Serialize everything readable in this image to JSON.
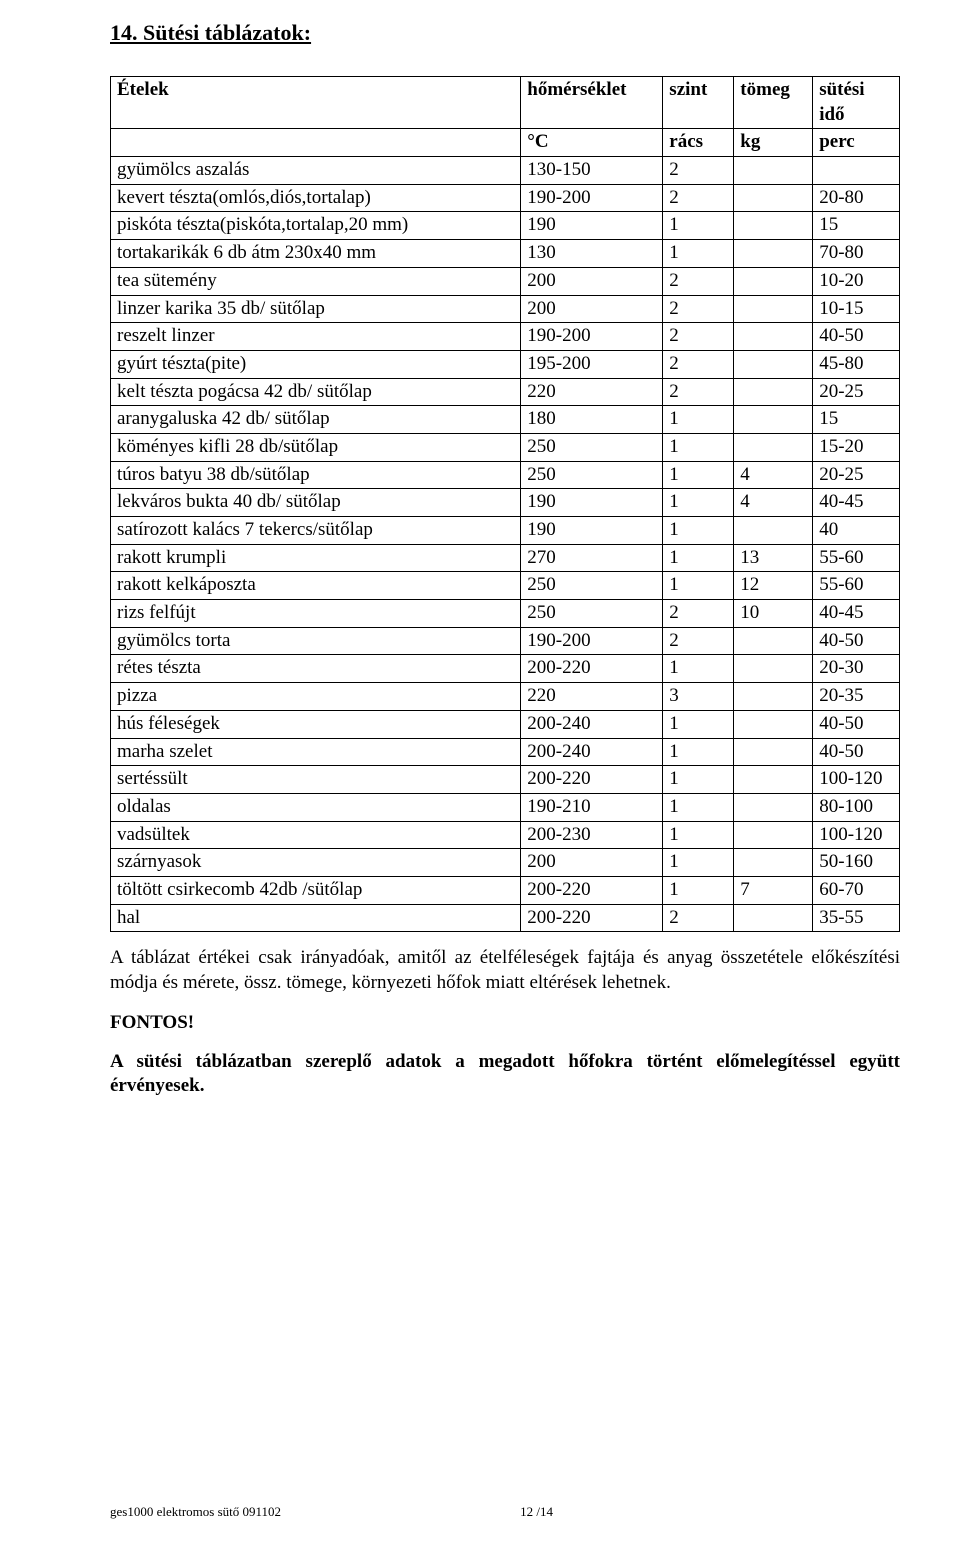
{
  "heading": "14. Sütési táblázatok:",
  "table": {
    "type": "table",
    "header1": [
      "Ételek",
      "hőmérséklet",
      "szint",
      "tömeg",
      "sütési idő"
    ],
    "header2": [
      "",
      "°C",
      "rács",
      "kg",
      "perc"
    ],
    "rows": [
      [
        "gyümölcs aszalás",
        "130-150",
        "2",
        "",
        ""
      ],
      [
        "kevert tészta(omlós,diós,tortalap)",
        "190-200",
        "2",
        "",
        "20-80"
      ],
      [
        "piskóta tészta(piskóta,tortalap,20 mm)",
        "190",
        "1",
        "",
        "15"
      ],
      [
        "tortakarikák 6 db átm 230x40 mm",
        "130",
        "1",
        "",
        "70-80"
      ],
      [
        "tea sütemény",
        "200",
        "2",
        "",
        "10-20"
      ],
      [
        "linzer karika 35 db/ sütőlap",
        "200",
        "2",
        "",
        "10-15"
      ],
      [
        "reszelt linzer",
        "190-200",
        "2",
        "",
        "40-50"
      ],
      [
        "gyúrt tészta(pite)",
        "195-200",
        "2",
        "",
        "45-80"
      ],
      [
        "kelt tészta pogácsa 42 db/ sütőlap",
        "220",
        "2",
        "",
        "20-25"
      ],
      [
        "aranygaluska 42 db/ sütőlap",
        "180",
        "1",
        "",
        "15"
      ],
      [
        "köményes kifli 28 db/sütőlap",
        "250",
        "1",
        "",
        "15-20"
      ],
      [
        "túros batyu 38 db/sütőlap",
        "250",
        "1",
        "4",
        "20-25"
      ],
      [
        "lekváros bukta 40 db/ sütőlap",
        "190",
        "1",
        "4",
        "40-45"
      ],
      [
        "satírozott kalács 7 tekercs/sütőlap",
        "190",
        "1",
        "",
        "40"
      ],
      [
        "rakott krumpli",
        "270",
        "1",
        "13",
        "55-60"
      ],
      [
        "rakott kelkáposzta",
        "250",
        "1",
        "12",
        "55-60"
      ],
      [
        "rizs felfújt",
        "250",
        "2",
        "10",
        "40-45"
      ],
      [
        "gyümölcs torta",
        "190-200",
        "2",
        "",
        "40-50"
      ],
      [
        "rétes tészta",
        "200-220",
        "1",
        "",
        "20-30"
      ],
      [
        "pizza",
        "220",
        "3",
        "",
        "20-35"
      ],
      [
        "hús féleségek",
        "200-240",
        "1",
        "",
        "40-50"
      ],
      [
        "marha szelet",
        "200-240",
        "1",
        "",
        "40-50"
      ],
      [
        "sertéssült",
        "200-220",
        "1",
        "",
        "100-120"
      ],
      [
        "oldalas",
        "190-210",
        "1",
        "",
        "80-100"
      ],
      [
        "vadsültek",
        "200-230",
        "1",
        "",
        "100-120"
      ],
      [
        "szárnyasok",
        "200",
        "1",
        "",
        "50-160"
      ],
      [
        "töltött csirkecomb  42db /sütőlap",
        "200-220",
        "1",
        "7",
        "60-70"
      ],
      [
        "hal",
        "200-220",
        "2",
        "",
        "35-55"
      ]
    ],
    "border_color": "#000000",
    "background_color": "#ffffff",
    "font_size_pt": 14
  },
  "para1": "A táblázat értékei csak irányadóak, amitől az ételféleségek fajtája és anyag összetétele előkészítési módja és mérete, össz. tömege, környezeti hőfok miatt eltérések lehetnek.",
  "fontos_label": "FONTOS!",
  "para2": "A sütési táblázatban szereplő adatok a megadott hőfokra történt előmelegítéssel együtt érvényesek.",
  "footer_left": "ges1000 elektromos sütő 091102",
  "footer_page": "12 /14"
}
